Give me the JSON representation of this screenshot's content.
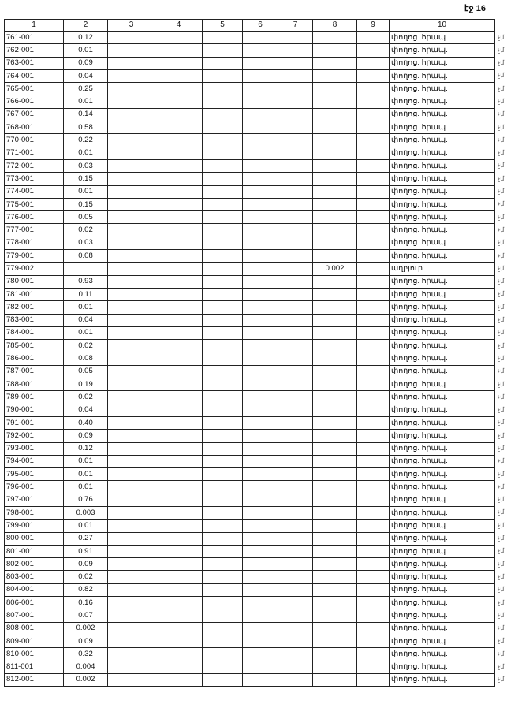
{
  "page_label": "էջ 16",
  "columns": [
    "1",
    "2",
    "3",
    "4",
    "5",
    "6",
    "7",
    "8",
    "9",
    "10"
  ],
  "rows": [
    [
      "761-001",
      "0.12",
      "",
      "",
      "",
      "",
      "",
      "",
      "",
      "փողոց. հրապ."
    ],
    [
      "762-001",
      "0.01",
      "",
      "",
      "",
      "",
      "",
      "",
      "",
      "փողոց. հրապ."
    ],
    [
      "763-001",
      "0.09",
      "",
      "",
      "",
      "",
      "",
      "",
      "",
      "փողոց. հրապ."
    ],
    [
      "764-001",
      "0.04",
      "",
      "",
      "",
      "",
      "",
      "",
      "",
      "փողոց. հրապ."
    ],
    [
      "765-001",
      "0.25",
      "",
      "",
      "",
      "",
      "",
      "",
      "",
      "փողոց. հրապ."
    ],
    [
      "766-001",
      "0.01",
      "",
      "",
      "",
      "",
      "",
      "",
      "",
      "փողոց. հրապ."
    ],
    [
      "767-001",
      "0.14",
      "",
      "",
      "",
      "",
      "",
      "",
      "",
      "փողոց. հրապ."
    ],
    [
      "768-001",
      "0.58",
      "",
      "",
      "",
      "",
      "",
      "",
      "",
      "փողոց. հրապ."
    ],
    [
      "770-001",
      "0.22",
      "",
      "",
      "",
      "",
      "",
      "",
      "",
      "փողոց. հրապ."
    ],
    [
      "771-001",
      "0.01",
      "",
      "",
      "",
      "",
      "",
      "",
      "",
      "փողոց. հրապ."
    ],
    [
      "772-001",
      "0.03",
      "",
      "",
      "",
      "",
      "",
      "",
      "",
      "փողոց. հրապ."
    ],
    [
      "773-001",
      "0.15",
      "",
      "",
      "",
      "",
      "",
      "",
      "",
      "փողոց. հրապ."
    ],
    [
      "774-001",
      "0.01",
      "",
      "",
      "",
      "",
      "",
      "",
      "",
      "փողոց. հրապ."
    ],
    [
      "775-001",
      "0.15",
      "",
      "",
      "",
      "",
      "",
      "",
      "",
      "փողոց. հրապ."
    ],
    [
      "776-001",
      "0.05",
      "",
      "",
      "",
      "",
      "",
      "",
      "",
      "փողոց. հրապ."
    ],
    [
      "777-001",
      "0.02",
      "",
      "",
      "",
      "",
      "",
      "",
      "",
      "փողոց. հրապ."
    ],
    [
      "778-001",
      "0.03",
      "",
      "",
      "",
      "",
      "",
      "",
      "",
      "փողոց. հրապ."
    ],
    [
      "779-001",
      "0.08",
      "",
      "",
      "",
      "",
      "",
      "",
      "",
      "փողոց. հրապ."
    ],
    [
      "779-002",
      "",
      "",
      "",
      "",
      "",
      "",
      "0.002",
      "",
      "աղբյուր"
    ],
    [
      "780-001",
      "0.93",
      "",
      "",
      "",
      "",
      "",
      "",
      "",
      "փողոց. հրապ."
    ],
    [
      "781-001",
      "0.11",
      "",
      "",
      "",
      "",
      "",
      "",
      "",
      "փողոց. հրապ."
    ],
    [
      "782-001",
      "0.01",
      "",
      "",
      "",
      "",
      "",
      "",
      "",
      "փողոց. հրապ."
    ],
    [
      "783-001",
      "0.04",
      "",
      "",
      "",
      "",
      "",
      "",
      "",
      "փողոց. հրապ."
    ],
    [
      "784-001",
      "0.01",
      "",
      "",
      "",
      "",
      "",
      "",
      "",
      "փողոց. հրապ."
    ],
    [
      "785-001",
      "0.02",
      "",
      "",
      "",
      "",
      "",
      "",
      "",
      "փողոց. հրապ."
    ],
    [
      "786-001",
      "0.08",
      "",
      "",
      "",
      "",
      "",
      "",
      "",
      "փողոց. հրապ."
    ],
    [
      "787-001",
      "0.05",
      "",
      "",
      "",
      "",
      "",
      "",
      "",
      "փողոց. հրապ."
    ],
    [
      "788-001",
      "0.19",
      "",
      "",
      "",
      "",
      "",
      "",
      "",
      "փողոց. հրապ."
    ],
    [
      "789-001",
      "0.02",
      "",
      "",
      "",
      "",
      "",
      "",
      "",
      "փողոց. հրապ."
    ],
    [
      "790-001",
      "0.04",
      "",
      "",
      "",
      "",
      "",
      "",
      "",
      "փողոց. հրապ."
    ],
    [
      "791-001",
      "0.40",
      "",
      "",
      "",
      "",
      "",
      "",
      "",
      "փողոց. հրապ."
    ],
    [
      "792-001",
      "0.09",
      "",
      "",
      "",
      "",
      "",
      "",
      "",
      "փողոց. հրապ."
    ],
    [
      "793-001",
      "0.12",
      "",
      "",
      "",
      "",
      "",
      "",
      "",
      "փողոց. հրապ."
    ],
    [
      "794-001",
      "0.01",
      "",
      "",
      "",
      "",
      "",
      "",
      "",
      "փողոց. հրապ."
    ],
    [
      "795-001",
      "0.01",
      "",
      "",
      "",
      "",
      "",
      "",
      "",
      "փողոց. հրապ."
    ],
    [
      "796-001",
      "0.01",
      "",
      "",
      "",
      "",
      "",
      "",
      "",
      "փողոց. հրապ."
    ],
    [
      "797-001",
      "0.76",
      "",
      "",
      "",
      "",
      "",
      "",
      "",
      "փողոց. հրապ."
    ],
    [
      "798-001",
      "0.003",
      "",
      "",
      "",
      "",
      "",
      "",
      "",
      "փողոց. հրապ."
    ],
    [
      "799-001",
      "0.01",
      "",
      "",
      "",
      "",
      "",
      "",
      "",
      "փողոց. հրապ."
    ],
    [
      "800-001",
      "0.27",
      "",
      "",
      "",
      "",
      "",
      "",
      "",
      "փողոց. հրապ."
    ],
    [
      "801-001",
      "0.91",
      "",
      "",
      "",
      "",
      "",
      "",
      "",
      "փողոց. հրապ."
    ],
    [
      "802-001",
      "0.09",
      "",
      "",
      "",
      "",
      "",
      "",
      "",
      "փողոց. հրապ."
    ],
    [
      "803-001",
      "0.02",
      "",
      "",
      "",
      "",
      "",
      "",
      "",
      "փողոց. հրապ."
    ],
    [
      "804-001",
      "0.82",
      "",
      "",
      "",
      "",
      "",
      "",
      "",
      "փողոց. հրապ."
    ],
    [
      "806-001",
      "0.16",
      "",
      "",
      "",
      "",
      "",
      "",
      "",
      "փողոց. հրապ."
    ],
    [
      "807-001",
      "0.07",
      "",
      "",
      "",
      "",
      "",
      "",
      "",
      "փողոց. հրապ."
    ],
    [
      "808-001",
      "0.002",
      "",
      "",
      "",
      "",
      "",
      "",
      "",
      "փողոց. հրապ."
    ],
    [
      "809-001",
      "0.09",
      "",
      "",
      "",
      "",
      "",
      "",
      "",
      "փողոց. հրապ."
    ],
    [
      "810-001",
      "0.32",
      "",
      "",
      "",
      "",
      "",
      "",
      "",
      "փողոց. հրապ."
    ],
    [
      "811-001",
      "0.004",
      "",
      "",
      "",
      "",
      "",
      "",
      "",
      "փողոց. հրապ."
    ],
    [
      "812-001",
      "0.002",
      "",
      "",
      "",
      "",
      "",
      "",
      "",
      "փողոց. հրապ."
    ]
  ],
  "margin_mark": "չմ"
}
